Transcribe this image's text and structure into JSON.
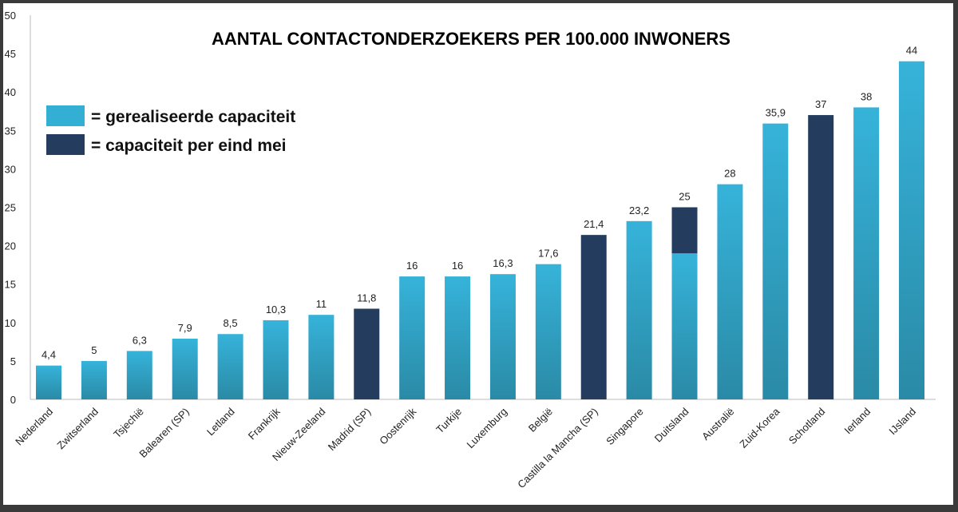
{
  "chart_data": {
    "type": "bar",
    "stacked": true,
    "title": "AANTAL CONTACTONDERZOEKERS PER 100.000 INWONERS",
    "xlabel": "",
    "ylabel": "",
    "ylim": [
      0,
      50
    ],
    "yticks": [
      0,
      5,
      10,
      15,
      20,
      25,
      30,
      35,
      40,
      45,
      50
    ],
    "grid": false,
    "legend_position": "top-left",
    "categories": [
      "Nederland",
      "Zwitserland",
      "Tsjechië",
      "Balearen (SP)",
      "Letland",
      "Frankrijk",
      "Nieuw-Zeeland",
      "Madrid (SP)",
      "Oostenrijk",
      "Turkije",
      "Luxemburg",
      "België",
      "Castilla la Mancha (SP)",
      "Singapore",
      "Duitsland",
      "Australië",
      "Zuid-Korea",
      "Schotland",
      "Ierland",
      "IJsland"
    ],
    "series": [
      {
        "name": "= gerealiseerde capaciteit",
        "color": "#34afd4",
        "values": [
          4.4,
          5,
          6.3,
          7.9,
          8.5,
          10.3,
          11,
          0,
          16,
          16,
          16.3,
          17.6,
          0,
          23.2,
          19,
          28,
          35.9,
          0,
          38,
          44
        ]
      },
      {
        "name": "= capaciteit per eind mei",
        "color": "#243d5e",
        "values": [
          0,
          0,
          0,
          0,
          0,
          0,
          0,
          11.8,
          0,
          0,
          0,
          0,
          21.4,
          0,
          6,
          0,
          0,
          37,
          0,
          0
        ]
      }
    ],
    "data_labels": [
      "4,4",
      "5",
      "6,3",
      "7,9",
      "8,5",
      "10,3",
      "11",
      "11,8",
      "16",
      "16",
      "16,3",
      "17,6",
      "21,4",
      "23,2",
      "25",
      "28",
      "35,9",
      "37",
      "38",
      "44"
    ]
  }
}
